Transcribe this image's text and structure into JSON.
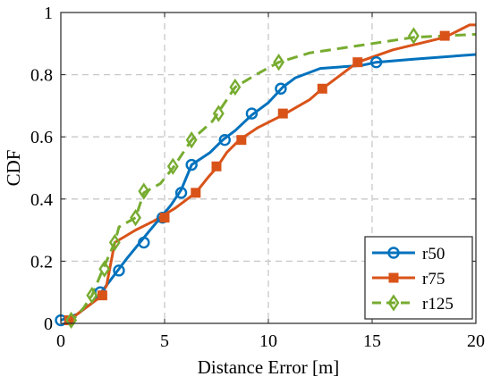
{
  "chart_data": {
    "type": "line",
    "title": "",
    "xlabel": "Distance Error [m]",
    "ylabel": "CDF",
    "xlim": [
      0,
      20
    ],
    "ylim": [
      0,
      1
    ],
    "xticks": [
      "0",
      "5",
      "10",
      "15",
      "20"
    ],
    "yticks": [
      "0",
      "0.2",
      "0.4",
      "0.6",
      "0.8",
      "1"
    ],
    "grid": true,
    "legend_position": "bottom-right",
    "series": [
      {
        "name": "r50",
        "color": "#0072BD",
        "line_style": "solid",
        "marker": "circle",
        "points": [
          [
            0,
            0.01
          ],
          [
            0.8,
            0.03
          ],
          [
            1.6,
            0.07
          ],
          [
            2.4,
            0.14
          ],
          [
            3.2,
            0.21
          ],
          [
            4.3,
            0.3
          ],
          [
            5.3,
            0.38
          ],
          [
            5.8,
            0.43
          ],
          [
            6.3,
            0.51
          ],
          [
            7.2,
            0.55
          ],
          [
            7.8,
            0.59
          ],
          [
            8.4,
            0.62
          ],
          [
            9.2,
            0.67
          ],
          [
            10.0,
            0.71
          ],
          [
            10.7,
            0.76
          ],
          [
            11.3,
            0.79
          ],
          [
            12.5,
            0.82
          ],
          [
            14.5,
            0.83
          ],
          [
            15.2,
            0.84
          ],
          [
            17.0,
            0.85
          ],
          [
            20.0,
            0.865
          ]
        ],
        "marker_points": [
          [
            0,
            0.01
          ],
          [
            1.9,
            0.1
          ],
          [
            2.8,
            0.17
          ],
          [
            4.0,
            0.26
          ],
          [
            4.9,
            0.34
          ],
          [
            5.8,
            0.42
          ],
          [
            6.3,
            0.51
          ],
          [
            7.9,
            0.59
          ],
          [
            9.2,
            0.675
          ],
          [
            10.6,
            0.755
          ],
          [
            15.2,
            0.84
          ]
        ]
      },
      {
        "name": "r75",
        "color": "#D95319",
        "line_style": "solid",
        "marker": "square",
        "points": [
          [
            0.4,
            0.01
          ],
          [
            1.2,
            0.05
          ],
          [
            1.8,
            0.08
          ],
          [
            2.2,
            0.12
          ],
          [
            2.6,
            0.26
          ],
          [
            3.6,
            0.3
          ],
          [
            4.5,
            0.33
          ],
          [
            5.5,
            0.37
          ],
          [
            6.5,
            0.42
          ],
          [
            7.1,
            0.47
          ],
          [
            7.5,
            0.5
          ],
          [
            8.0,
            0.55
          ],
          [
            8.6,
            0.59
          ],
          [
            9.5,
            0.63
          ],
          [
            10.7,
            0.67
          ],
          [
            12.0,
            0.72
          ],
          [
            12.6,
            0.755
          ],
          [
            13.5,
            0.8
          ],
          [
            14.3,
            0.84
          ],
          [
            16.0,
            0.88
          ],
          [
            18.5,
            0.92
          ],
          [
            19.7,
            0.96
          ],
          [
            20.0,
            0.96
          ]
        ],
        "marker_points": [
          [
            0.4,
            0.01
          ],
          [
            2.0,
            0.09
          ],
          [
            5.0,
            0.34
          ],
          [
            6.5,
            0.42
          ],
          [
            7.5,
            0.505
          ],
          [
            8.7,
            0.59
          ],
          [
            10.7,
            0.675
          ],
          [
            12.6,
            0.755
          ],
          [
            14.3,
            0.84
          ],
          [
            18.5,
            0.925
          ]
        ]
      },
      {
        "name": "r125",
        "color": "#77AC30",
        "line_style": "dashed",
        "marker": "diamond",
        "points": [
          [
            0.3,
            0.005
          ],
          [
            0.7,
            0.02
          ],
          [
            1.1,
            0.05
          ],
          [
            1.5,
            0.09
          ],
          [
            2.0,
            0.17
          ],
          [
            2.6,
            0.26
          ],
          [
            2.8,
            0.31
          ],
          [
            3.6,
            0.34
          ],
          [
            4.0,
            0.42
          ],
          [
            4.8,
            0.45
          ],
          [
            5.4,
            0.5
          ],
          [
            5.8,
            0.54
          ],
          [
            6.3,
            0.59
          ],
          [
            7.3,
            0.65
          ],
          [
            7.6,
            0.68
          ],
          [
            8.4,
            0.76
          ],
          [
            9.4,
            0.8
          ],
          [
            10.5,
            0.84
          ],
          [
            12.0,
            0.87
          ],
          [
            14.0,
            0.89
          ],
          [
            17.0,
            0.92
          ],
          [
            20.0,
            0.93
          ]
        ],
        "marker_points": [
          [
            0.5,
            0.01
          ],
          [
            1.5,
            0.09
          ],
          [
            2.1,
            0.175
          ],
          [
            2.6,
            0.26
          ],
          [
            3.6,
            0.34
          ],
          [
            4.0,
            0.425
          ],
          [
            5.4,
            0.505
          ],
          [
            6.3,
            0.59
          ],
          [
            7.6,
            0.675
          ],
          [
            8.4,
            0.76
          ],
          [
            10.5,
            0.84
          ],
          [
            17.0,
            0.925
          ]
        ]
      }
    ]
  }
}
